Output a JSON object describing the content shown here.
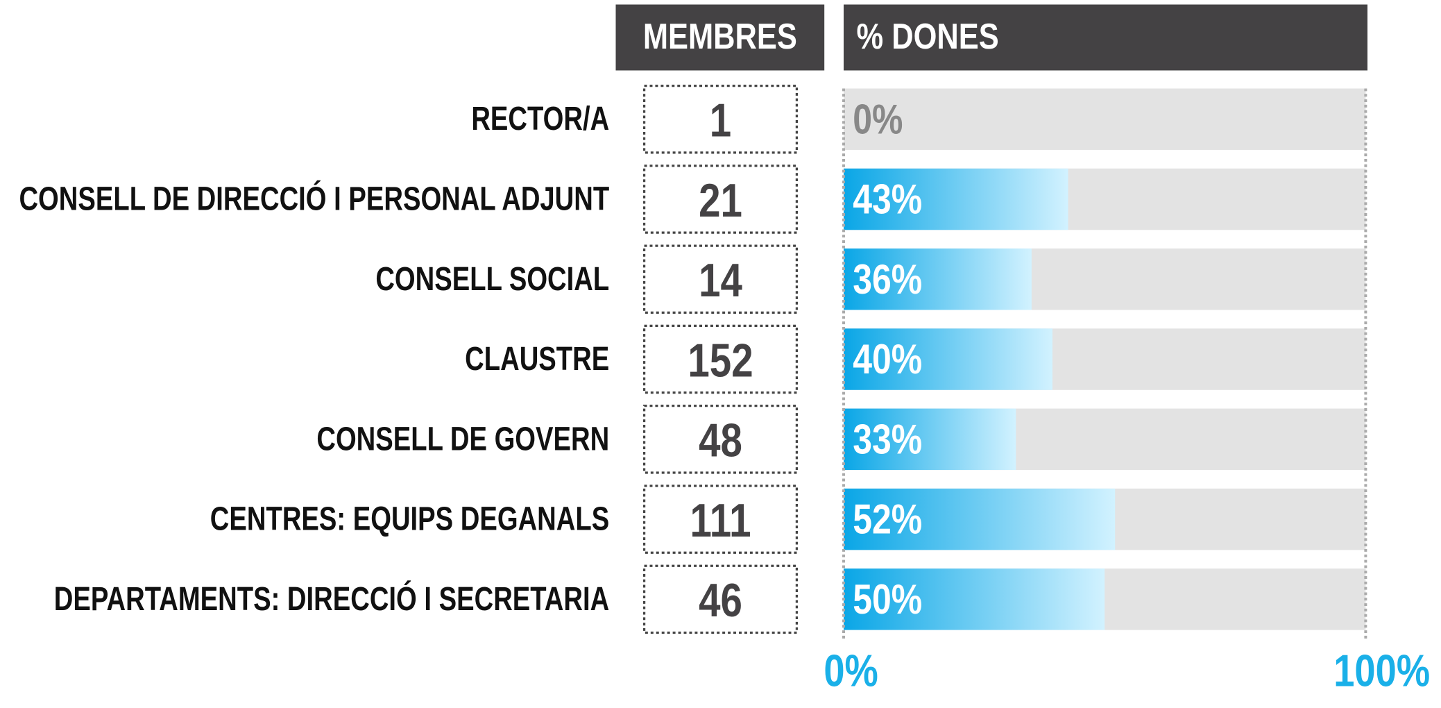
{
  "chart_data": {
    "type": "bar",
    "orientation": "horizontal",
    "members_header": "MEMBRES",
    "values_header": "% DONES",
    "categories": [
      "RECTOR/A",
      "CONSELL DE DIRECCIÓ I PERSONAL ADJUNT",
      "CONSELL SOCIAL",
      "CLAUSTRE",
      "CONSELL DE GOVERN",
      "CENTRES: EQUIPS DEGANALS",
      "DEPARTAMENTS: DIRECCIÓ I SECRETARIA"
    ],
    "members": [
      1,
      21,
      14,
      152,
      48,
      111,
      46
    ],
    "values": [
      0,
      43,
      36,
      40,
      33,
      52,
      50
    ],
    "value_labels": [
      "0%",
      "43%",
      "36%",
      "40%",
      "33%",
      "52%",
      "50%"
    ],
    "color": "#0aa6e6",
    "xlim": [
      0,
      100
    ],
    "xticks": [
      {
        "value": 0,
        "label": "0%"
      },
      {
        "value": 100,
        "label": "100%"
      }
    ]
  }
}
